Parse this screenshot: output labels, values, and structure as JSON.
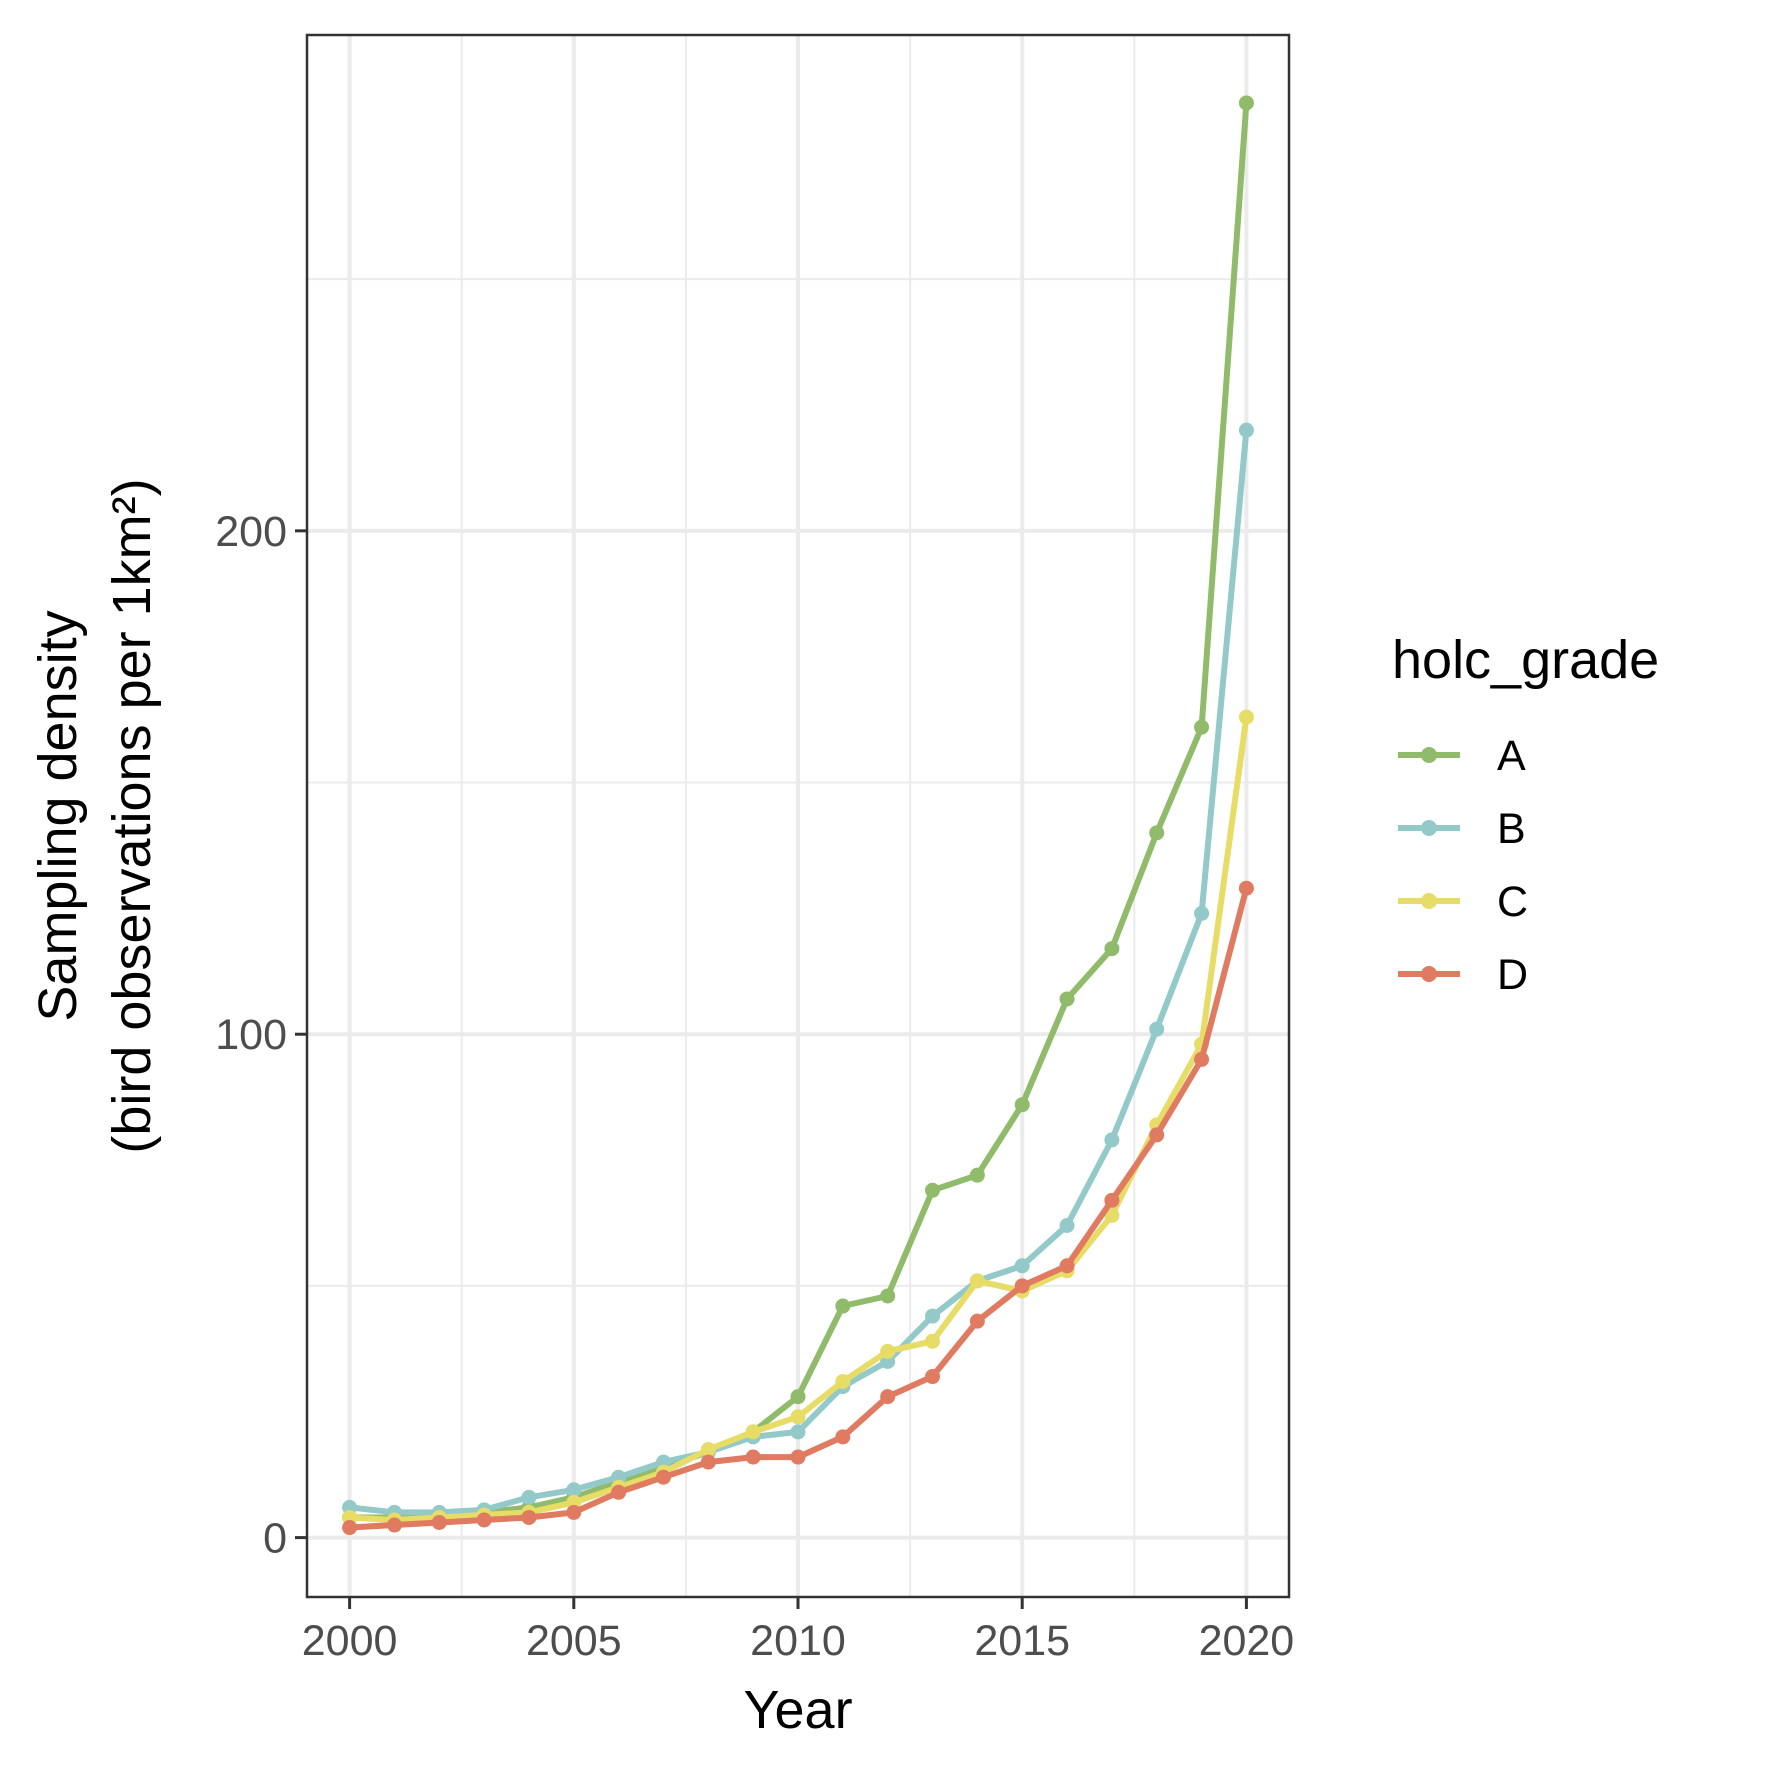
{
  "chart_data": {
    "type": "line",
    "xlabel": "Year",
    "ylabel_line1": "Sampling density",
    "ylabel_line2": "(bird observations per 1km²)",
    "legend_title": "holc_grade",
    "legend_position": "right",
    "grid": true,
    "xlim": [
      1999.05,
      2020.95
    ],
    "ylim": [
      -11.8,
      298.5
    ],
    "x_ticks": [
      2000,
      2005,
      2010,
      2015,
      2020
    ],
    "y_ticks": [
      0,
      100,
      200
    ],
    "x": [
      2000,
      2001,
      2002,
      2003,
      2004,
      2005,
      2006,
      2007,
      2008,
      2009,
      2010,
      2011,
      2012,
      2013,
      2014,
      2015,
      2016,
      2017,
      2018,
      2019,
      2020
    ],
    "series": [
      {
        "name": "A",
        "color": "#8fbb6a",
        "values": [
          4,
          4,
          4.5,
          5,
          6,
          8,
          11,
          14,
          17,
          21,
          28,
          46,
          48,
          69,
          72,
          86,
          107,
          117,
          140,
          161,
          285
        ]
      },
      {
        "name": "B",
        "color": "#93c9c9",
        "values": [
          6,
          5,
          5,
          5.5,
          8,
          9.5,
          12,
          15,
          17,
          20,
          21,
          30,
          35,
          44,
          51,
          54,
          62,
          79,
          101,
          124,
          220
        ]
      },
      {
        "name": "C",
        "color": "#e6dc66",
        "values": [
          4,
          3.5,
          4,
          4.5,
          5,
          7,
          10,
          13,
          17.5,
          21,
          24,
          31,
          37,
          39,
          51,
          49,
          53,
          64,
          82,
          98,
          163
        ]
      },
      {
        "name": "D",
        "color": "#e07a60",
        "values": [
          2,
          2.5,
          3,
          3.5,
          4,
          5,
          9,
          12,
          15,
          16,
          16,
          20,
          28,
          32,
          43,
          50,
          54,
          67,
          80,
          95,
          129
        ]
      }
    ]
  }
}
